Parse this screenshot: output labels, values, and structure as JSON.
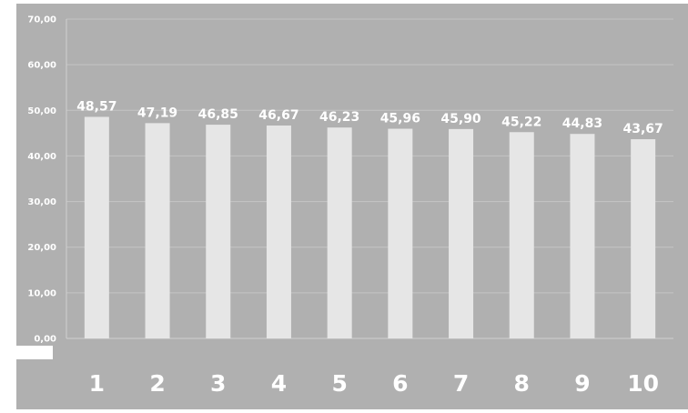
{
  "colors": {
    "background": "#b0b0b0",
    "bar": "#e6e6e6",
    "gridline": "#c4c4c4",
    "axis": "#d0d0d0",
    "text": "#ffffff"
  },
  "chart_data": {
    "type": "bar",
    "categories": [
      "1",
      "2",
      "3",
      "4",
      "5",
      "6",
      "7",
      "8",
      "9",
      "10"
    ],
    "values": [
      48.57,
      47.19,
      46.85,
      46.67,
      46.23,
      45.96,
      45.9,
      45.22,
      44.83,
      43.67
    ],
    "data_labels": [
      "48,57",
      "47,19",
      "46,85",
      "46,67",
      "46,23",
      "45,96",
      "45,90",
      "45,22",
      "44,83",
      "43,67"
    ],
    "title": "",
    "xlabel": "",
    "ylabel": "",
    "ylim": [
      0,
      70
    ],
    "yticks": [
      0,
      10,
      20,
      30,
      40,
      50,
      60,
      70
    ],
    "ytick_labels": [
      "0,00",
      "10,00",
      "20,00",
      "30,00",
      "40,00",
      "50,00",
      "60,00",
      "70,00"
    ],
    "grid": true,
    "legend": "none"
  }
}
